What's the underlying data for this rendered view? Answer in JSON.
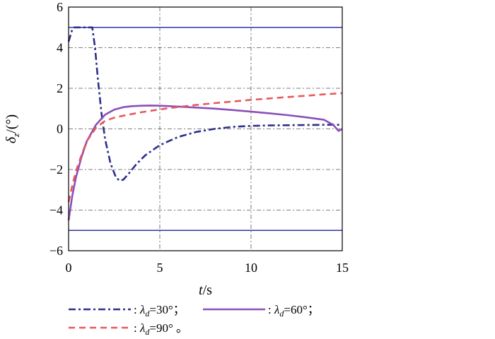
{
  "chart_data": {
    "type": "line",
    "title": "",
    "xlabel": {
      "symbol": "t",
      "unit": "/s"
    },
    "ylabel": {
      "symbol": "δ",
      "sub": "z",
      "unit": "/(°)"
    },
    "xlim": [
      0,
      15
    ],
    "ylim": [
      -6,
      6
    ],
    "xticks": [
      "0",
      "5",
      "10",
      "15"
    ],
    "yticks": [
      "−6",
      "−4",
      "−2",
      "0",
      "2",
      "4",
      "6"
    ],
    "grid": true,
    "limit_lines": [
      5,
      -5
    ],
    "limit_color": "#3333aa",
    "legend": [
      {
        "prefix": ": ",
        "symbol": "λ",
        "sub": "d",
        "value": "=30°；",
        "color": "#2e2e8c",
        "dash": "10,4,3,4"
      },
      {
        "prefix": ": ",
        "symbol": "λ",
        "sub": "d",
        "value": "=60°；",
        "color": "#8a4fb8",
        "dash": ""
      },
      {
        "prefix": ": ",
        "symbol": "λ",
        "sub": "d",
        "value": "=90° 。",
        "color": "#e8585a",
        "dash": "9,6"
      }
    ],
    "series": [
      {
        "color": "#2e2e8c",
        "dash": "10,4,3,4",
        "x": [
          0,
          0.1,
          0.2,
          0.3,
          0.5,
          1.0,
          1.3,
          1.45,
          1.6,
          1.8,
          2.0,
          2.3,
          2.6,
          2.8,
          3.0,
          3.3,
          3.7,
          4.2,
          5.0,
          6.0,
          7.0,
          8.0,
          9.0,
          10.0,
          11.0,
          12.0,
          13.0,
          14.0,
          15.0
        ],
        "y": [
          4.3,
          4.6,
          4.9,
          5.0,
          5.0,
          5.0,
          5.0,
          4.0,
          2.5,
          0.8,
          -0.5,
          -1.7,
          -2.4,
          -2.55,
          -2.5,
          -2.2,
          -1.75,
          -1.3,
          -0.8,
          -0.4,
          -0.15,
          0.0,
          0.1,
          0.15,
          0.17,
          0.18,
          0.19,
          0.2,
          0.2
        ]
      },
      {
        "color": "#8a4fb8",
        "dash": "",
        "x": [
          0,
          0.2,
          0.4,
          0.7,
          1.0,
          1.5,
          2.0,
          2.5,
          3.0,
          3.5,
          4.0,
          4.5,
          5.0,
          6.0,
          7.0,
          8.0,
          9.0,
          10.0,
          11.0,
          12.0,
          13.0,
          14.0,
          14.5,
          14.8,
          15.0
        ],
        "y": [
          -4.5,
          -3.3,
          -2.4,
          -1.4,
          -0.6,
          0.2,
          0.7,
          0.95,
          1.07,
          1.12,
          1.14,
          1.15,
          1.14,
          1.1,
          1.05,
          1.0,
          0.93,
          0.85,
          0.77,
          0.68,
          0.57,
          0.45,
          0.2,
          -0.1,
          0.0
        ]
      },
      {
        "color": "#e8585a",
        "dash": "9,6",
        "x": [
          0,
          0.2,
          0.4,
          0.7,
          1.0,
          1.5,
          2.0,
          2.5,
          3.0,
          4.0,
          5.0,
          6.0,
          7.0,
          8.0,
          9.0,
          10.0,
          11.0,
          12.0,
          13.0,
          14.0,
          15.0
        ],
        "y": [
          -3.6,
          -2.8,
          -2.1,
          -1.3,
          -0.6,
          0.05,
          0.4,
          0.55,
          0.65,
          0.82,
          0.96,
          1.08,
          1.18,
          1.27,
          1.35,
          1.43,
          1.5,
          1.57,
          1.63,
          1.7,
          1.76
        ]
      }
    ]
  }
}
